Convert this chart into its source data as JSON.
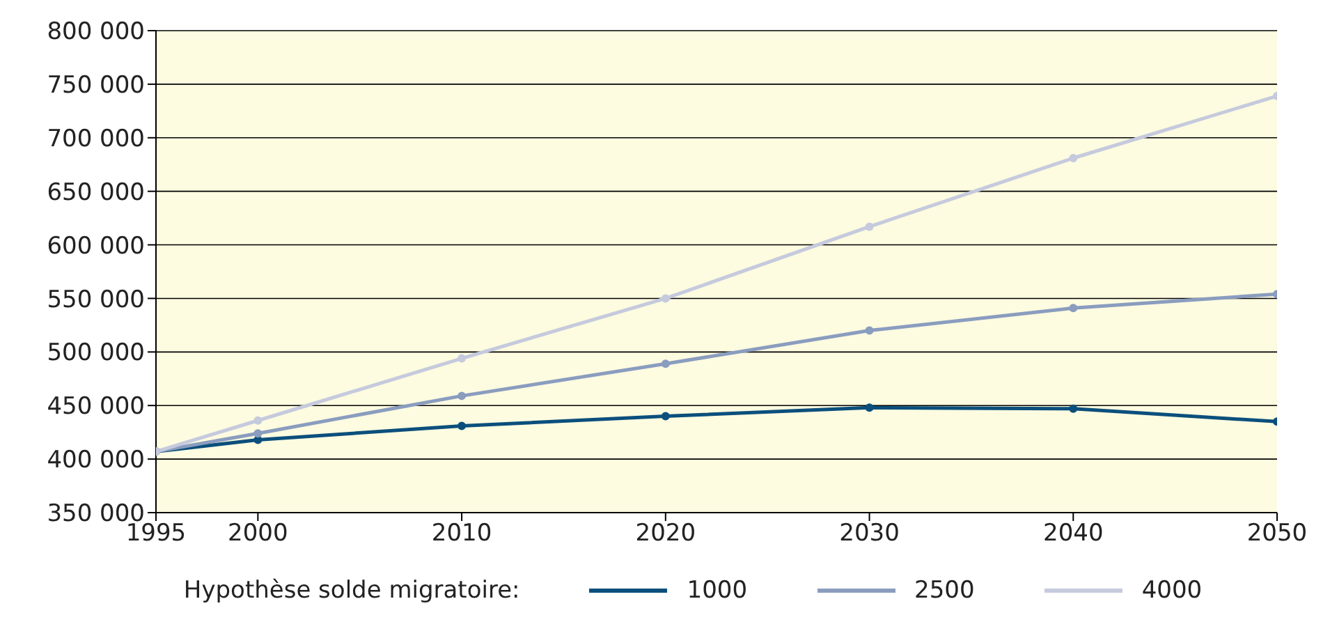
{
  "chart_data": {
    "type": "line",
    "x": [
      1995,
      2000,
      2010,
      2020,
      2030,
      2040,
      2050
    ],
    "series": [
      {
        "name": "1000",
        "color": "#0b4f7c",
        "values": [
          407000,
          418000,
          431000,
          440000,
          448000,
          447000,
          435000
        ]
      },
      {
        "name": "2500",
        "color": "#8a9dbf",
        "values": [
          407000,
          424000,
          459000,
          489000,
          520000,
          541000,
          554000
        ]
      },
      {
        "name": "4000",
        "color": "#c5cadd",
        "values": [
          407000,
          436000,
          494000,
          550000,
          617000,
          681000,
          739000
        ]
      }
    ],
    "xlim": [
      1995,
      2050
    ],
    "xticks": [
      1995,
      2000,
      2010,
      2020,
      2030,
      2040,
      2050
    ],
    "ylim": [
      350000,
      800000
    ],
    "yticks": [
      {
        "value": 350000,
        "label": "350 000"
      },
      {
        "value": 400000,
        "label": "400 000"
      },
      {
        "value": 450000,
        "label": "450 000"
      },
      {
        "value": 500000,
        "label": "500 000"
      },
      {
        "value": 550000,
        "label": "550 000"
      },
      {
        "value": 600000,
        "label": "600 000"
      },
      {
        "value": 650000,
        "label": "650 000"
      },
      {
        "value": 700000,
        "label": "700 000"
      },
      {
        "value": 750000,
        "label": "750 000"
      },
      {
        "value": 800000,
        "label": "800 000"
      }
    ],
    "grid": "y",
    "legend": "bottom",
    "legend_title": "Hypothèse solde migratoire:",
    "marker": "circle",
    "line_style": "solid"
  }
}
